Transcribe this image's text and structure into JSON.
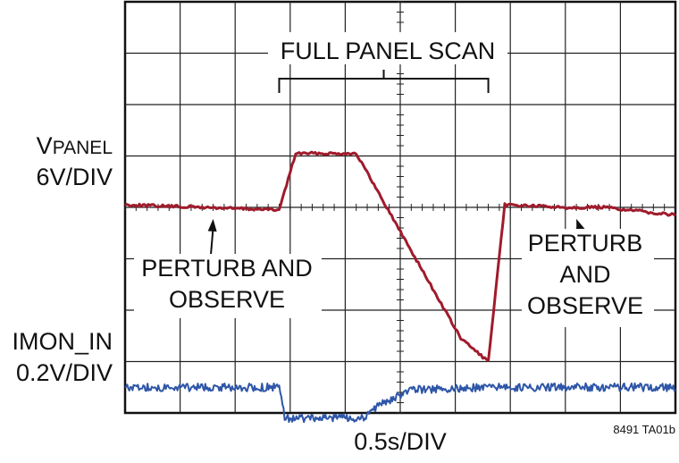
{
  "chart_data": {
    "type": "line",
    "xlabel": "0.5s/DIV",
    "figure_id": "8491 TA01b",
    "x_unit": "s",
    "x_range": [
      0,
      5
    ],
    "x_per_div": 0.5,
    "divisions": {
      "x": 10,
      "y": 8
    },
    "grid": true,
    "series": [
      {
        "name": "VPANEL",
        "name_main": "V",
        "name_sub": "PANEL",
        "scale": "6V/DIV",
        "color": "#A01B2C",
        "x": [
          0,
          0.7,
          1.4,
          1.55,
          2.1,
          3.05,
          3.3,
          3.45,
          4.0,
          4.35,
          5.0
        ],
        "y": [
          0.05,
          0.0,
          -0.05,
          1.05,
          1.05,
          -2.55,
          -3.0,
          0.05,
          0.0,
          0.0,
          -0.15
        ]
      },
      {
        "name": "IMON_IN",
        "scale": "0.2V/DIV",
        "color": "#2E56A8",
        "x": [
          0,
          1.4,
          1.45,
          2.15,
          2.35,
          2.6,
          3.3,
          5.0
        ],
        "y": [
          -3.5,
          -3.5,
          -4.1,
          -4.1,
          -3.8,
          -3.55,
          -3.5,
          -3.5
        ]
      }
    ],
    "annotations": [
      {
        "text": "FULL PANEL SCAN",
        "type": "bracket",
        "x_start": 1.4,
        "x_end": 3.3
      },
      {
        "lines": [
          "PERTURB AND",
          "OBSERVE"
        ],
        "type": "arrow",
        "target_x": 0.8,
        "target_y": -0.05
      },
      {
        "lines": [
          "PERTURB",
          "AND",
          "OBSERVE"
        ],
        "type": "arrow",
        "target_x": 4.1,
        "target_y": -0.05
      }
    ]
  }
}
